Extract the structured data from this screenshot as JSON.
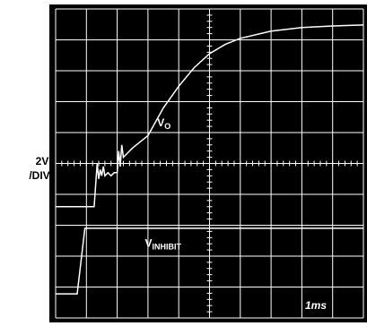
{
  "chart_data": {
    "type": "line",
    "y_scale_label": [
      "2V",
      "/DIV"
    ],
    "time_scale_label": "1ms",
    "xlim": [
      0,
      10
    ],
    "ylim": [
      0,
      10
    ],
    "xticks": [
      0,
      1,
      2,
      3,
      4,
      5,
      6,
      7,
      8,
      9,
      10
    ],
    "yticks": [
      0,
      1,
      2,
      3,
      4,
      5,
      6,
      7,
      8,
      9,
      10
    ],
    "grid": true,
    "series": [
      {
        "name": "V",
        "subscript": "O",
        "color": "#ffffff",
        "x": [
          0,
          1.25,
          1.3,
          1.35,
          1.4,
          1.45,
          1.5,
          1.55,
          1.6,
          1.7,
          1.8,
          1.9,
          2.0,
          2.05,
          2.1,
          2.15,
          2.2,
          2.3,
          2.5,
          2.75,
          3.0,
          3.5,
          4.0,
          4.5,
          5.0,
          5.5,
          6.0,
          7.0,
          8.0,
          9.0,
          10.0
        ],
        "values": [
          3.6,
          3.6,
          4.3,
          5.0,
          4.5,
          4.8,
          4.6,
          4.9,
          4.6,
          4.7,
          4.6,
          4.7,
          4.7,
          5.4,
          4.9,
          5.6,
          5.2,
          5.3,
          5.5,
          5.7,
          5.9,
          6.8,
          7.5,
          8.1,
          8.55,
          8.85,
          9.05,
          9.28,
          9.4,
          9.45,
          9.48
        ]
      },
      {
        "name": "V",
        "subscript": "INHIBIT",
        "color": "#ffffff",
        "x": [
          0,
          0.7,
          0.95,
          10
        ],
        "values": [
          0.78,
          0.78,
          2.9,
          2.9
        ]
      }
    ],
    "annotations": [
      {
        "text": "V",
        "subscript": "O",
        "x": 3.3,
        "y": 6.2
      },
      {
        "text": "V",
        "subscript": "INHIBIT",
        "x": 2.9,
        "y": 2.3
      }
    ]
  }
}
